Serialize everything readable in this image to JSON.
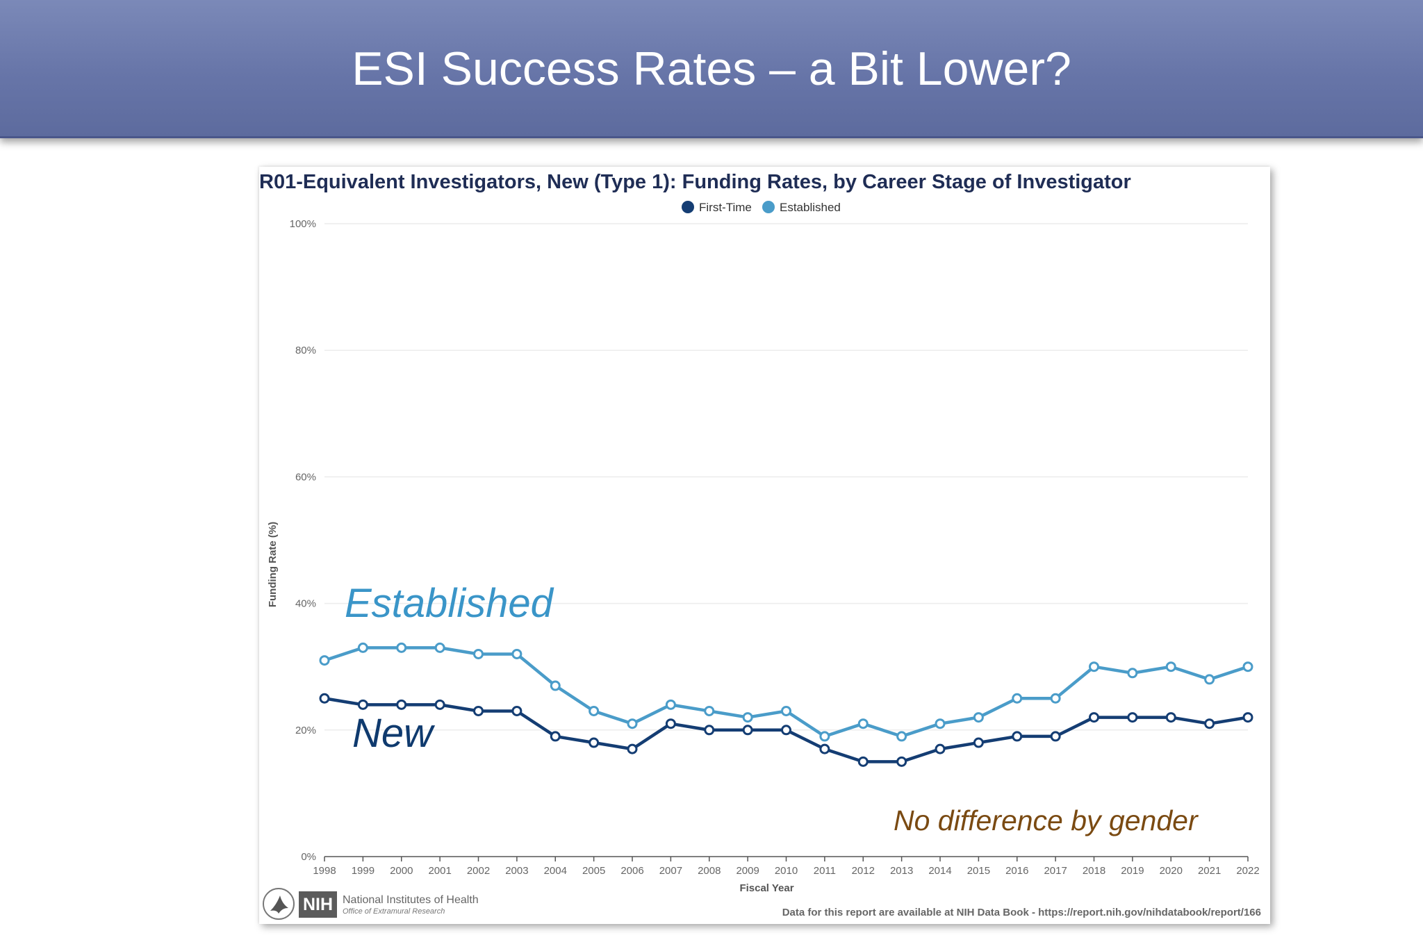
{
  "slide": {
    "title": "ESI Success Rates – a Bit Lower?"
  },
  "annotations": {
    "established": "Established",
    "new": "New",
    "gender": "No difference by gender"
  },
  "logo": {
    "badge": "NIH",
    "name": "National Institutes of Health",
    "office": "Office of Extramural Research"
  },
  "source_note": "Data for this report are available at NIH Data Book - https://report.nih.gov/nihdatabook/report/166",
  "colors": {
    "banner": "#6775a8",
    "first_time": "#143d73",
    "established": "#4a9cc9",
    "annotation_gender": "#7a4a12"
  },
  "chart_data": {
    "type": "line",
    "title": "R01-Equivalent Investigators, New (Type 1): Funding Rates, by Career Stage of Investigator",
    "xlabel": "Fiscal Year",
    "ylabel": "Funding Rate (%)",
    "ylim": [
      0,
      100
    ],
    "yticks": [
      0,
      20,
      40,
      60,
      80,
      100
    ],
    "ytick_labels": [
      "0%",
      "20%",
      "40%",
      "60%",
      "80%",
      "100%"
    ],
    "grid": true,
    "legend": "top-center",
    "x": [
      1998,
      1999,
      2000,
      2001,
      2002,
      2003,
      2004,
      2005,
      2006,
      2007,
      2008,
      2009,
      2010,
      2011,
      2012,
      2013,
      2014,
      2015,
      2016,
      2017,
      2018,
      2019,
      2020,
      2021,
      2022
    ],
    "series": [
      {
        "name": "First-Time",
        "color": "#143d73",
        "values": [
          25,
          24,
          24,
          24,
          23,
          23,
          19,
          18,
          17,
          21,
          20,
          20,
          20,
          17,
          15,
          15,
          17,
          18,
          19,
          19,
          22,
          22,
          22,
          21,
          22
        ]
      },
      {
        "name": "Established",
        "color": "#4a9cc9",
        "values": [
          31,
          33,
          33,
          33,
          32,
          32,
          27,
          23,
          21,
          24,
          23,
          22,
          23,
          19,
          21,
          19,
          21,
          22,
          25,
          25,
          30,
          29,
          30,
          28,
          30
        ]
      }
    ]
  }
}
